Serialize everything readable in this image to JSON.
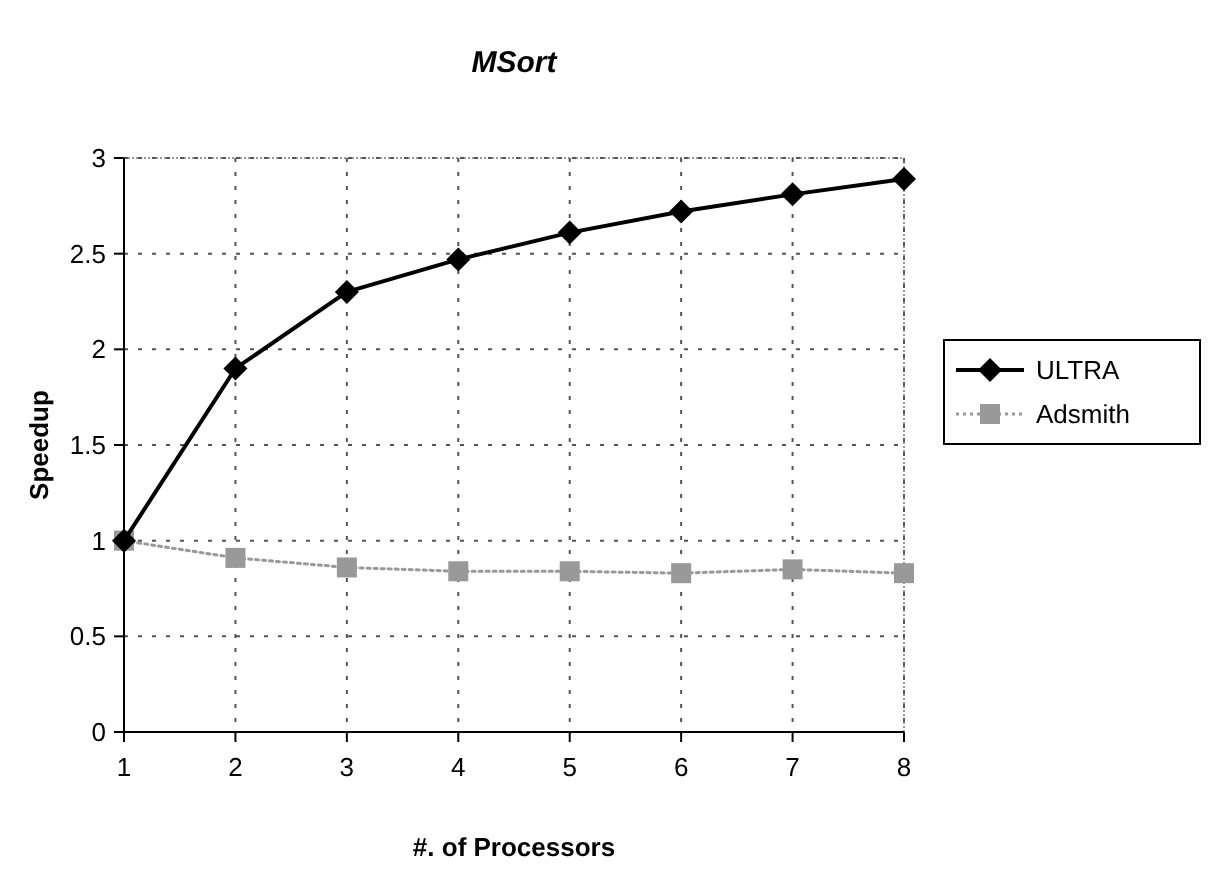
{
  "chart_data": {
    "type": "line",
    "title": "MSort",
    "xlabel": "#. of Processors",
    "ylabel": "Speedup",
    "x": [
      1,
      2,
      3,
      4,
      5,
      6,
      7,
      8
    ],
    "xlim": [
      1,
      8
    ],
    "xticks": [
      1,
      2,
      3,
      4,
      5,
      6,
      7,
      8
    ],
    "ylim": [
      0,
      3
    ],
    "yticks": [
      0,
      0.5,
      1,
      1.5,
      2,
      2.5,
      3
    ],
    "grid": true,
    "legend": "right",
    "series": [
      {
        "name": "ULTRA",
        "color": "#000000",
        "marker": "diamond",
        "line_style": "solid",
        "values": [
          1,
          1.9,
          2.3,
          2.47,
          2.61,
          2.72,
          2.81,
          2.89
        ]
      },
      {
        "name": "Adsmith",
        "color": "#999999",
        "marker": "square",
        "line_style": "dotted",
        "values": [
          1,
          0.91,
          0.86,
          0.84,
          0.84,
          0.83,
          0.85,
          0.83
        ]
      }
    ]
  }
}
